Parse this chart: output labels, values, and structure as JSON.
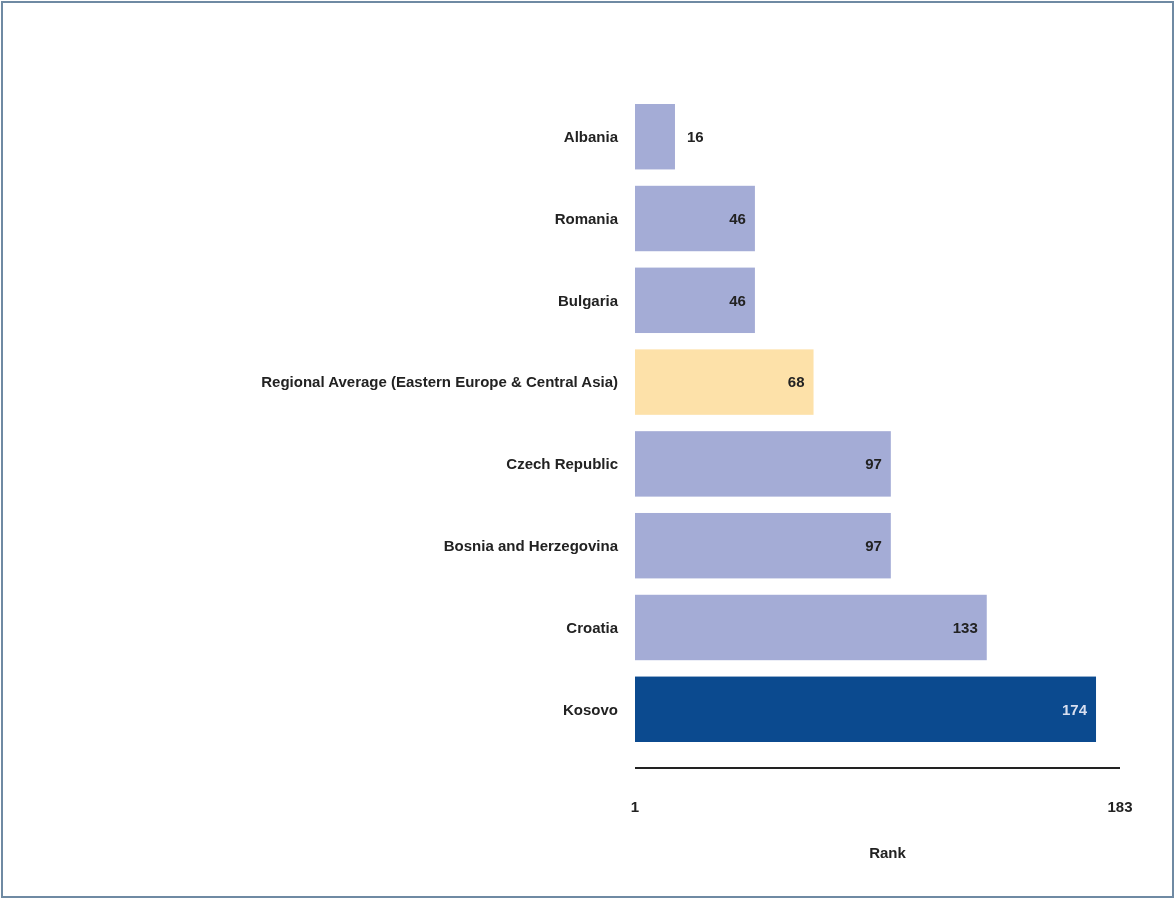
{
  "chart_data": {
    "type": "bar",
    "orientation": "horizontal",
    "xlabel": "Rank",
    "categories": [
      "Albania",
      "Romania",
      "Bulgaria",
      "Regional Average (Eastern Europe & Central Asia)",
      "Czech Republic",
      "Bosnia and Herzegovina",
      "Croatia",
      "Kosovo"
    ],
    "values": [
      16,
      46,
      46,
      68,
      97,
      97,
      133,
      174
    ],
    "colors": [
      "#a4acd6",
      "#a4acd6",
      "#a4acd6",
      "#fde1a9",
      "#a4acd6",
      "#a4acd6",
      "#a4acd6",
      "#0b4a8f"
    ],
    "xlim": [
      1,
      183
    ],
    "xticks": [
      1,
      183
    ],
    "data_labels": true
  }
}
